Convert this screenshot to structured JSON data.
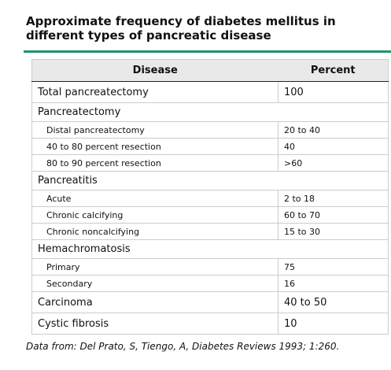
{
  "title": "Approximate frequency of diabetes mellitus in different types of pancreatic disease",
  "table": {
    "header": [
      "Disease",
      "Percent"
    ],
    "rows": [
      [
        "Total pancreatectomy",
        "100"
      ],
      {
        "label": "Pancreatectomy",
        "rows": [
          [
            "Distal pancreatectomy",
            "20 to 40"
          ],
          [
            "40 to 80 percent resection",
            "40"
          ],
          [
            "80 to 90 percent resection",
            ">60"
          ]
        ]
      },
      {
        "label": "Pancreatitis",
        "rows": [
          [
            "Acute",
            "2 to 18"
          ],
          [
            "Chronic calcifying",
            "60 to 70"
          ],
          [
            "Chronic noncalcifying",
            "15 to 30"
          ]
        ]
      },
      {
        "label": "Hemachromatosis",
        "rows": [
          [
            "Primary",
            "75"
          ],
          [
            "Secondary",
            "16"
          ]
        ]
      },
      [
        "Carcinoma",
        "40 to 50"
      ],
      [
        "Cystic fibrosis",
        "10"
      ]
    ]
  },
  "footnote": "Data from: Del Prato, S, Tiengo, A, Diabetes Reviews 1993; 1:260."
}
